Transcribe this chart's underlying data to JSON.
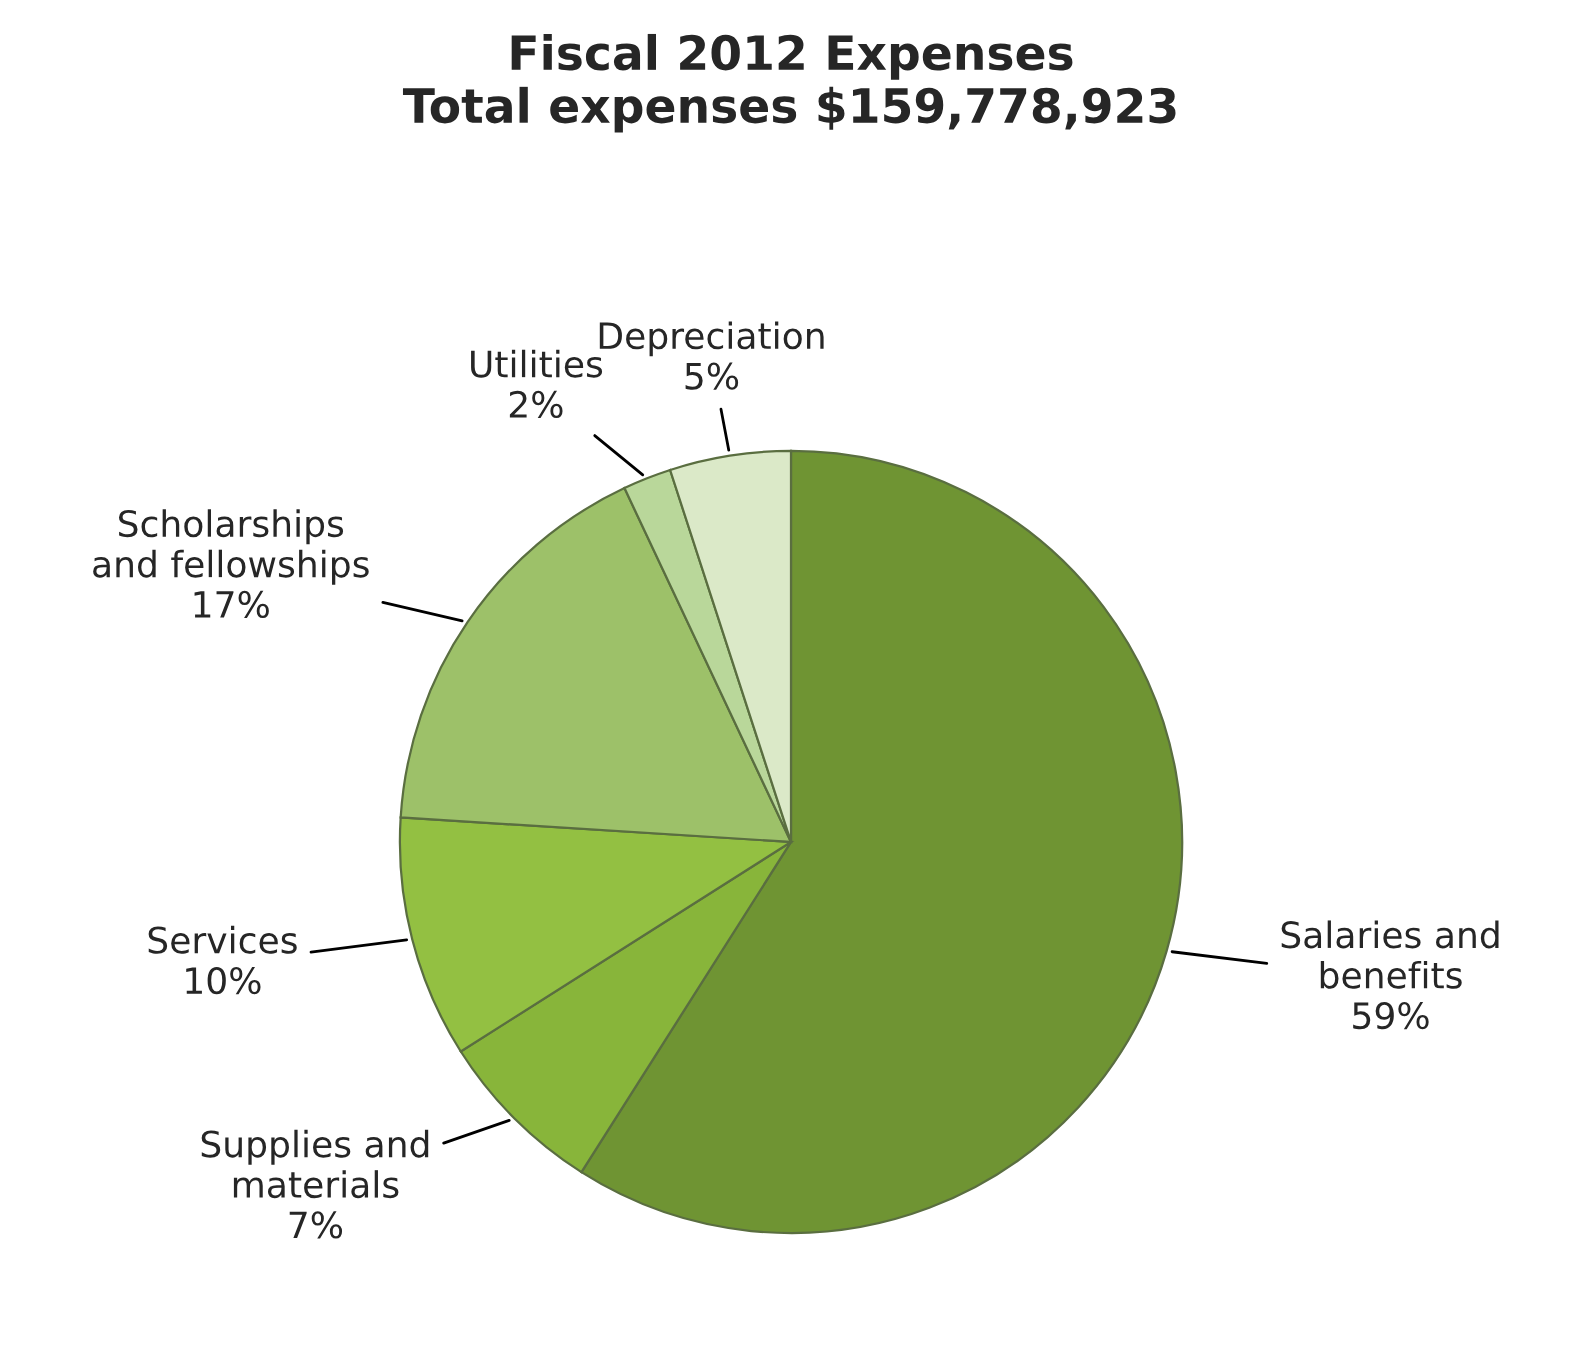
{
  "chart_data": {
    "type": "pie",
    "title": "Fiscal 2012 Expenses\nTotal expenses $159,778,923",
    "categories": [
      "Salaries and\nbenefits",
      "Supplies and\nmaterials",
      "Services",
      "Scholarships\nand fellowships",
      "Utilities",
      "Depreciation"
    ],
    "values": [
      59,
      7,
      10,
      17,
      2,
      5
    ],
    "value_labels": [
      "59%",
      "7%",
      "10%",
      "17%",
      "2%",
      "5%"
    ],
    "colors": [
      "#6f9433",
      "#88b53a",
      "#93c042",
      "#9dc169",
      "#b9d79a",
      "#dbe9c8"
    ]
  }
}
